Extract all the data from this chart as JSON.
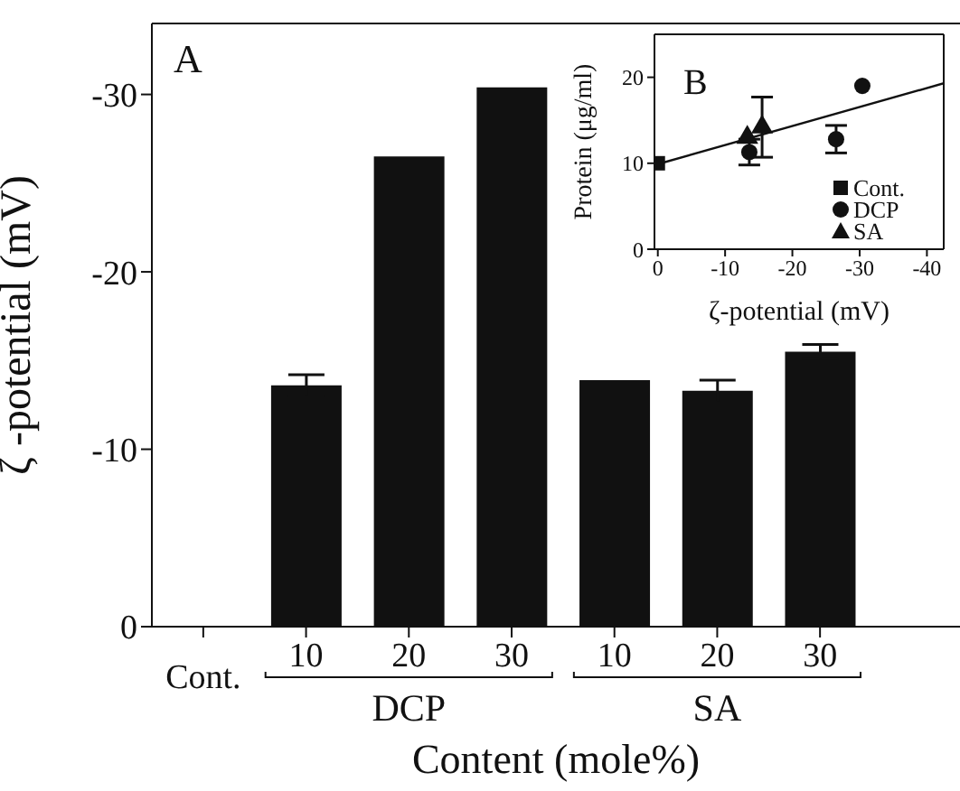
{
  "chart_data": [
    {
      "type": "bar",
      "categories": [
        "Cont.",
        "10",
        "20",
        "30",
        "10",
        "20",
        "30"
      ],
      "values": [
        0,
        -13.6,
        -26.5,
        -30.4,
        -13.9,
        -13.3,
        -15.5
      ],
      "errors": [
        null,
        0.6,
        null,
        null,
        null,
        0.6,
        0.4
      ],
      "color": "#111111",
      "xlabel": "Content (mole%)",
      "ylabel": "ζ -potential (mV)",
      "ylim": [
        0,
        -34
      ],
      "yticks": [
        0,
        -10,
        -20,
        -30
      ],
      "annotations": [
        "A",
        "DCP",
        "SA"
      ]
    },
    {
      "type": "scatter",
      "xlabel": "ζ-potential (mV)",
      "ylabel": "Protein (μg/ml)",
      "xlim": [
        0.5,
        -42.5
      ],
      "xticks": [
        0,
        -10,
        -20,
        -30,
        -40
      ],
      "ylim": [
        0,
        25
      ],
      "yticks": [
        0,
        10,
        20
      ],
      "legend": "bottom right",
      "annotations": [
        "B"
      ],
      "series": [
        {
          "name": "Cont.",
          "color": "#111111",
          "marker": "square",
          "x": [
            0
          ],
          "values": [
            10
          ]
        },
        {
          "name": "DCP",
          "color": "#111111",
          "marker": "circle",
          "x": [
            -13.6,
            -26.5,
            -30.4
          ],
          "values": [
            11.3,
            12.8,
            19
          ],
          "errors": [
            1.5,
            1.6,
            null
          ]
        },
        {
          "name": "SA",
          "color": "#111111",
          "marker": "triangle",
          "x": [
            -13.3,
            -15.5
          ],
          "values": [
            13,
            14.2
          ],
          "errors": [
            null,
            3.5
          ]
        },
        {
          "type": "line",
          "color": "#111111",
          "x": [
            0,
            -42.5
          ],
          "values": [
            9.9,
            19.3
          ]
        }
      ]
    }
  ]
}
